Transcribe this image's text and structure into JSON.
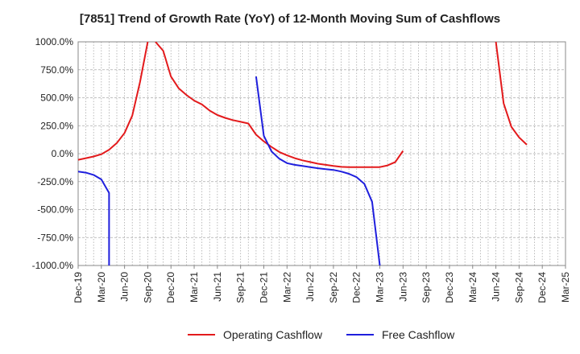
{
  "title": "[7851]  Trend of Growth Rate (YoY) of 12-Month Moving Sum of Cashflows",
  "legend": {
    "operating_label": "Operating Cashflow",
    "free_label": "Free Cashflow"
  },
  "colors": {
    "operating": "#e31a1c",
    "free": "#1f1fdd",
    "grid": "#aaaaaa",
    "axis": "#888888"
  },
  "chart_data": {
    "type": "line",
    "title": "[7851]  Trend of Growth Rate (YoY) of 12-Month Moving Sum of Cashflows",
    "x_tick_labels": [
      "Dec-19",
      "Mar-20",
      "Jun-20",
      "Sep-20",
      "Dec-20",
      "Mar-21",
      "Jun-21",
      "Sep-21",
      "Dec-21",
      "Mar-22",
      "Jun-22",
      "Sep-22",
      "Dec-22",
      "Mar-23",
      "Jun-23",
      "Sep-23",
      "Dec-23",
      "Mar-24",
      "Jun-24",
      "Sep-24",
      "Dec-24",
      "Mar-25"
    ],
    "y_tick_labels": [
      "1000.0%",
      "750.0%",
      "500.0%",
      "250.0%",
      "0.0%",
      "-250.0%",
      "-500.0%",
      "-750.0%",
      "-1000.0%"
    ],
    "ylim": [
      -1000,
      1000
    ],
    "x_range": [
      "Dec-19",
      "Mar-25"
    ],
    "grid": true,
    "legend_position": "bottom",
    "series": [
      {
        "name": "Operating Cashflow",
        "color": "#e31a1c",
        "segments": [
          [
            [
              "Dec-19",
              -55
            ],
            [
              "Jan-20",
              -40
            ],
            [
              "Feb-20",
              -25
            ],
            [
              "Mar-20",
              -5
            ],
            [
              "Apr-20",
              35
            ],
            [
              "May-20",
              95
            ],
            [
              "Jun-20",
              185
            ],
            [
              "Jul-20",
              340
            ],
            [
              "Aug-20",
              640
            ],
            [
              "Sep-20",
              1000
            ]
          ],
          [
            [
              "Oct-20",
              1000
            ],
            [
              "Nov-20",
              920
            ],
            [
              "Dec-20",
              690
            ],
            [
              "Jan-21",
              585
            ],
            [
              "Feb-21",
              525
            ],
            [
              "Mar-21",
              475
            ],
            [
              "Apr-21",
              440
            ],
            [
              "May-21",
              385
            ],
            [
              "Jun-21",
              345
            ],
            [
              "Jul-21",
              320
            ],
            [
              "Aug-21",
              300
            ],
            [
              "Sep-21",
              285
            ],
            [
              "Oct-21",
              270
            ],
            [
              "Nov-21",
              170
            ],
            [
              "Dec-21",
              110
            ],
            [
              "Jan-22",
              60
            ],
            [
              "Feb-22",
              15
            ],
            [
              "Mar-22",
              -15
            ],
            [
              "Apr-22",
              -40
            ],
            [
              "May-22",
              -60
            ],
            [
              "Jun-22",
              -75
            ],
            [
              "Jul-22",
              -90
            ],
            [
              "Aug-22",
              -100
            ],
            [
              "Sep-22",
              -110
            ],
            [
              "Oct-22",
              -118
            ],
            [
              "Nov-22",
              -120
            ],
            [
              "Dec-22",
              -120
            ],
            [
              "Jan-23",
              -120
            ],
            [
              "Feb-23",
              -120
            ],
            [
              "Mar-23",
              -120
            ],
            [
              "Apr-23",
              -105
            ],
            [
              "May-23",
              -75
            ],
            [
              "Jun-23",
              25
            ]
          ],
          [
            [
              "Jun-24",
              1000
            ],
            [
              "Jul-24",
              450
            ],
            [
              "Aug-24",
              240
            ],
            [
              "Sep-24",
              145
            ],
            [
              "Oct-24",
              80
            ]
          ]
        ]
      },
      {
        "name": "Free Cashflow",
        "color": "#1f1fdd",
        "segments": [
          [
            [
              "Dec-19",
              -160
            ],
            [
              "Jan-20",
              -170
            ],
            [
              "Feb-20",
              -190
            ],
            [
              "Mar-20",
              -230
            ],
            [
              "Apr-20",
              -350
            ],
            [
              "Apr-20",
              -1000
            ]
          ],
          [
            [
              "Nov-21",
              690
            ],
            [
              "Dec-21",
              160
            ],
            [
              "Jan-22",
              20
            ],
            [
              "Feb-22",
              -45
            ],
            [
              "Mar-22",
              -85
            ],
            [
              "Apr-22",
              -100
            ],
            [
              "May-22",
              -110
            ],
            [
              "Jun-22",
              -120
            ],
            [
              "Jul-22",
              -130
            ],
            [
              "Aug-22",
              -138
            ],
            [
              "Sep-22",
              -145
            ],
            [
              "Oct-22",
              -160
            ],
            [
              "Nov-22",
              -180
            ],
            [
              "Dec-22",
              -210
            ],
            [
              "Jan-23",
              -270
            ],
            [
              "Feb-23",
              -430
            ],
            [
              "Mar-23",
              -1000
            ]
          ]
        ]
      }
    ]
  }
}
